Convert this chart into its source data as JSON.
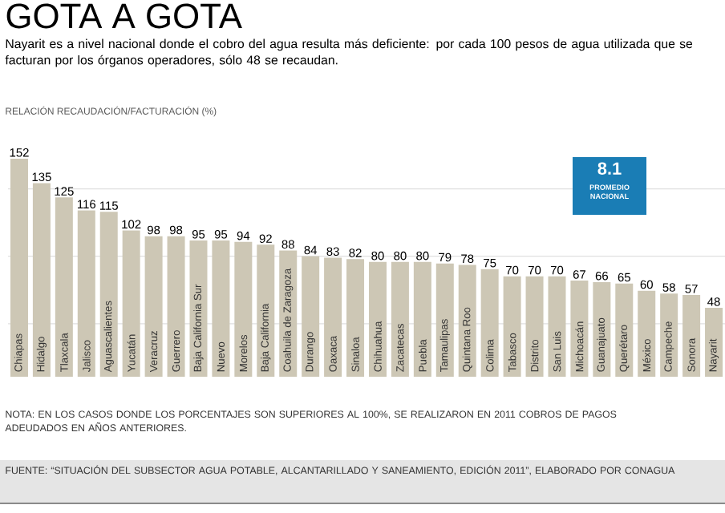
{
  "chart_data": {
    "type": "bar",
    "title": "GOTA A GOTA",
    "subtitle": "Nayarit es a nivel nacional donde el cobro del agua resulta más deficiente: por cada 100 pesos de agua utilizada que se facturan por los órganos operadores, sólo 48 se recaudan.",
    "ylabel": "RELACIÓN RECAUDACIÓN/FACTURACIÓN (%)",
    "categories": [
      "Chiapas",
      "Hidalgo",
      "Tlaxcala",
      "Jalisco",
      "Aguascalientes",
      "Yucatán",
      "Veracruz",
      "Guerrero",
      "Baja California Sur",
      "Nuevo",
      "Morelos",
      "Baja California",
      "Coahuila de Zaragoza",
      "Durango",
      "Oaxaca",
      "Sinaloa",
      "Chihuahua",
      "Zacatecas",
      "Puebla",
      "Tamaulipas",
      "Quintana Roo",
      "Colima",
      "Tabasco",
      "Distrito",
      "San Luis",
      "Michoacán",
      "Guanajuato",
      "Querétaro",
      "México",
      "Campeche",
      "Sonora",
      "Nayarit"
    ],
    "values": [
      152,
      135,
      125,
      116,
      115,
      102,
      98,
      98,
      95,
      95,
      94,
      92,
      88,
      84,
      83,
      82,
      80,
      80,
      80,
      79,
      78,
      75,
      70,
      70,
      70,
      67,
      66,
      65,
      60,
      58,
      57,
      48
    ],
    "value_labels": [
      "152",
      "135",
      "125",
      "116",
      "115",
      "102",
      "98",
      "98",
      "95",
      "95",
      "94",
      "92",
      "88",
      "84",
      "83",
      "82",
      "80",
      "80",
      "80",
      "79",
      "78",
      "75",
      "70",
      "70",
      "70",
      "67",
      "66",
      "65",
      "60",
      "58",
      "57",
      "48"
    ],
    "color": "#cdc7b5",
    "yticks": [
      {
        "value": 37,
        "label": null
      },
      {
        "value": 84,
        "label": null
      },
      {
        "value": 131,
        "label": null
      }
    ],
    "grid": "y",
    "tick_labels": "x",
    "annotations": [
      "8.1",
      "PROMEDIO NACIONAL",
      "NOTA: EN LOS CASOS DONDE LOS PORCENTAJES SON SUPERIORES AL 100%, SE REALIZARON EN 2011 COBROS DE PAGOS ADEUDADOS EN AÑOS ANTERIORES.",
      "FUENTE: “SITUACIÓN DEL SUBSECTOR AGUA POTABLE, ALCANTARILLADO Y SANEAMIENTO, EDICIÓN 2011”, ELABORADO POR CONAGUA"
    ]
  }
}
